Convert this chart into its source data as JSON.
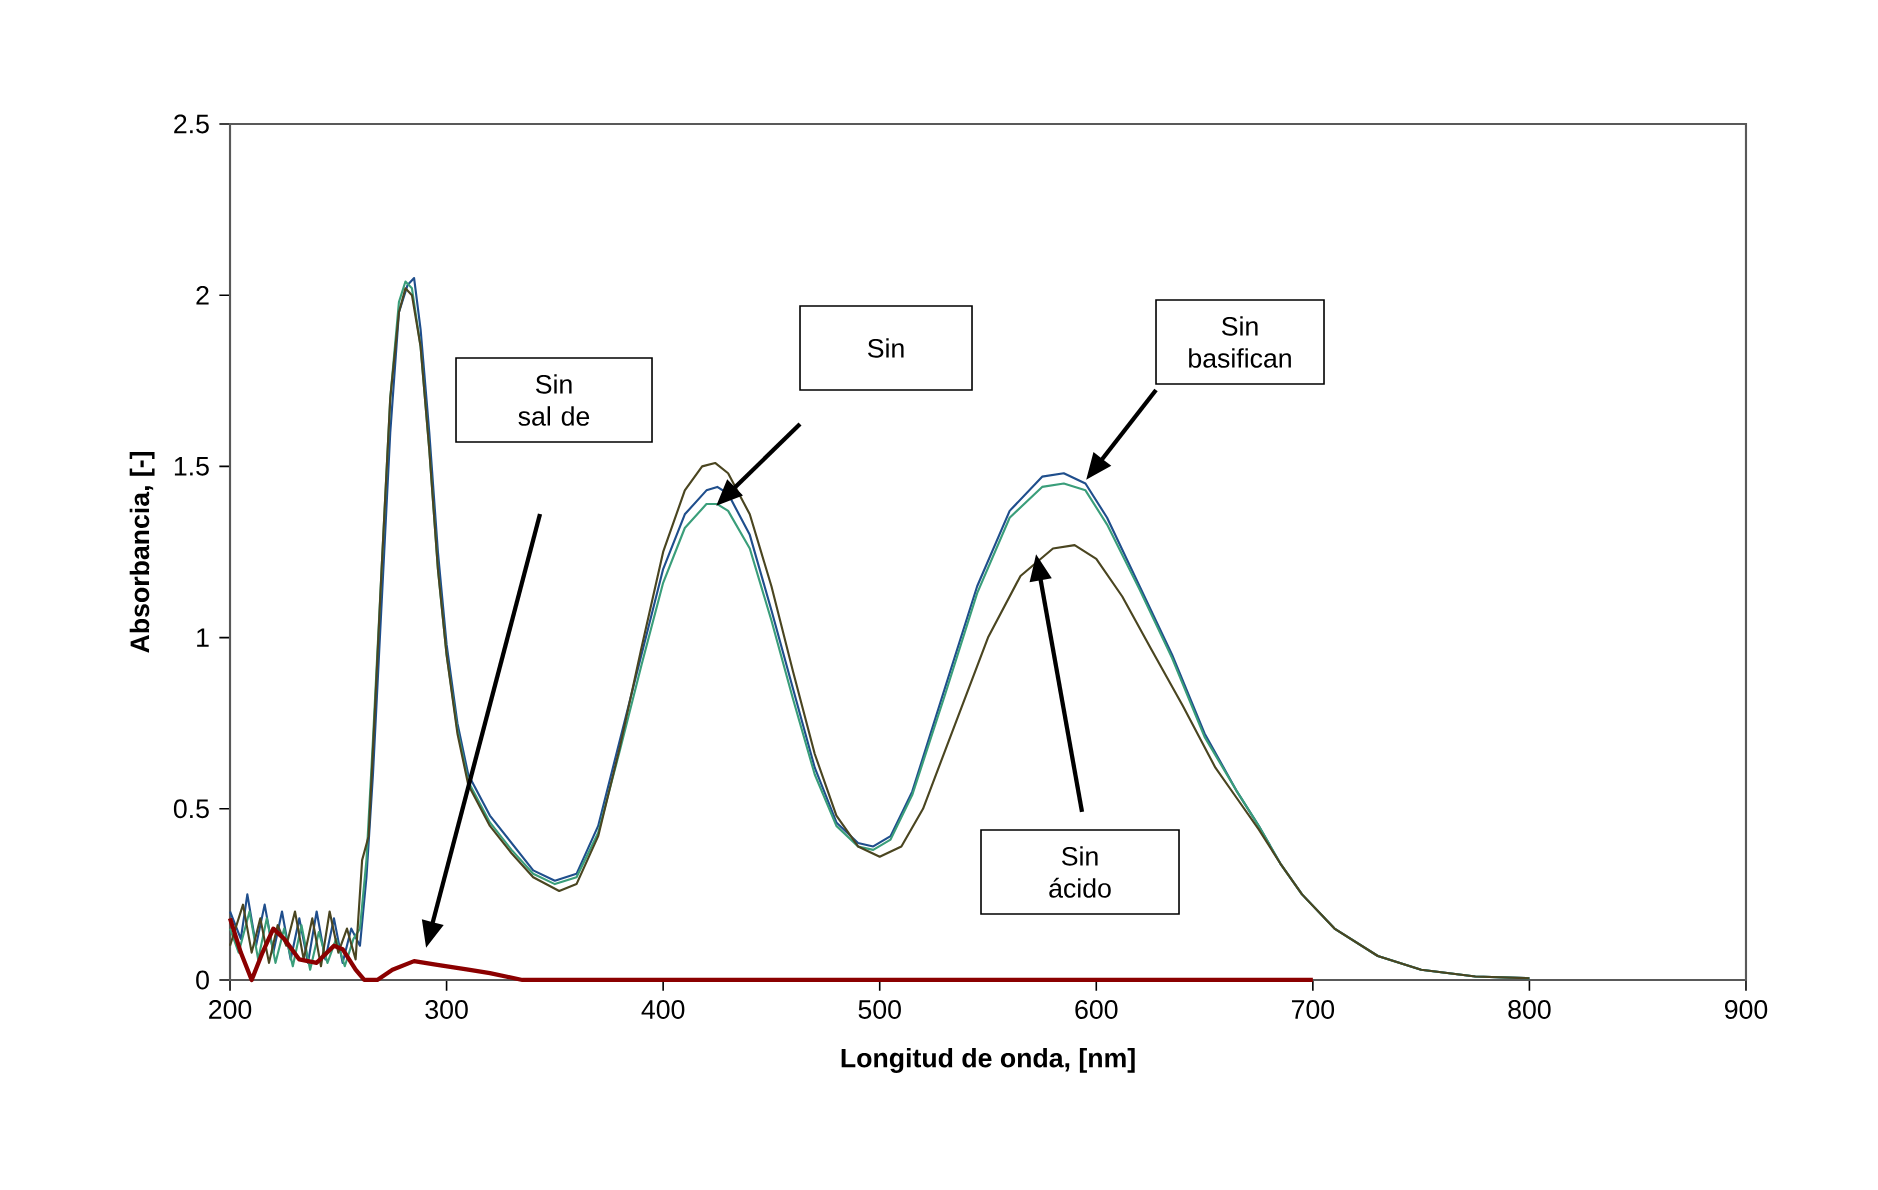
{
  "chart_data": {
    "type": "line",
    "xlabel": "Longitud de onda, [nm]",
    "ylabel": "Absorbancia, [-]",
    "xlim": [
      200,
      900
    ],
    "ylim": [
      0,
      2.5
    ],
    "xticks": [
      200,
      300,
      400,
      500,
      600,
      700,
      800,
      900
    ],
    "yticks": [
      0,
      0.5,
      1,
      1.5,
      2,
      2.5
    ],
    "grid": false,
    "series": [
      {
        "color": "#1f4e8c",
        "x": [
          200,
          205,
          208,
          212,
          216,
          220,
          224,
          228,
          232,
          236,
          240,
          244,
          248,
          252,
          256,
          260,
          263,
          266,
          270,
          274,
          278,
          282,
          285,
          288,
          292,
          296,
          300,
          305,
          310,
          320,
          330,
          340,
          350,
          360,
          370,
          380,
          390,
          400,
          410,
          420,
          425,
          430,
          440,
          450,
          460,
          470,
          480,
          490,
          497,
          505,
          515,
          530,
          545,
          560,
          575,
          585,
          595,
          605,
          620,
          635,
          650,
          665,
          675,
          685,
          695,
          710,
          730,
          750,
          775,
          800
        ],
        "values": [
          0.2,
          0.12,
          0.25,
          0.1,
          0.22,
          0.08,
          0.2,
          0.06,
          0.18,
          0.05,
          0.2,
          0.06,
          0.18,
          0.05,
          0.15,
          0.1,
          0.3,
          0.6,
          1.1,
          1.6,
          1.95,
          2.03,
          2.05,
          1.9,
          1.6,
          1.25,
          0.98,
          0.75,
          0.6,
          0.48,
          0.4,
          0.32,
          0.29,
          0.31,
          0.45,
          0.7,
          0.95,
          1.2,
          1.36,
          1.43,
          1.44,
          1.42,
          1.3,
          1.08,
          0.85,
          0.62,
          0.46,
          0.4,
          0.39,
          0.42,
          0.55,
          0.85,
          1.15,
          1.37,
          1.47,
          1.48,
          1.45,
          1.35,
          1.15,
          0.95,
          0.72,
          0.55,
          0.45,
          0.34,
          0.25,
          0.15,
          0.07,
          0.03,
          0.01,
          0.005
        ]
      },
      {
        "color": "#3a9e7a",
        "x": [
          200,
          204,
          209,
          213,
          217,
          221,
          225,
          229,
          233,
          237,
          241,
          245,
          249,
          253,
          257,
          260,
          263,
          266,
          270,
          274,
          278,
          281,
          284,
          288,
          292,
          296,
          300,
          305,
          310,
          320,
          330,
          340,
          350,
          360,
          370,
          380,
          390,
          400,
          410,
          420,
          425,
          430,
          440,
          450,
          460,
          470,
          480,
          490,
          497,
          505,
          515,
          530,
          545,
          560,
          575,
          585,
          595,
          605,
          620,
          635,
          650,
          665,
          675,
          685,
          695,
          710,
          730,
          750,
          775,
          800
        ],
        "values": [
          0.15,
          0.08,
          0.2,
          0.06,
          0.18,
          0.05,
          0.15,
          0.04,
          0.16,
          0.03,
          0.14,
          0.05,
          0.12,
          0.04,
          0.12,
          0.15,
          0.35,
          0.7,
          1.2,
          1.7,
          1.98,
          2.04,
          2.02,
          1.85,
          1.55,
          1.2,
          0.95,
          0.73,
          0.58,
          0.46,
          0.38,
          0.31,
          0.28,
          0.3,
          0.43,
          0.67,
          0.92,
          1.16,
          1.32,
          1.39,
          1.39,
          1.37,
          1.26,
          1.05,
          0.82,
          0.6,
          0.45,
          0.39,
          0.38,
          0.41,
          0.54,
          0.83,
          1.13,
          1.35,
          1.44,
          1.45,
          1.43,
          1.33,
          1.14,
          0.94,
          0.71,
          0.55,
          0.45,
          0.34,
          0.25,
          0.15,
          0.07,
          0.03,
          0.01,
          0.005
        ]
      },
      {
        "color": "#4a4520",
        "x": [
          200,
          206,
          210,
          214,
          218,
          222,
          226,
          230,
          234,
          238,
          242,
          246,
          250,
          254,
          258,
          261,
          264,
          267,
          270,
          274,
          278,
          281,
          284,
          288,
          292,
          296,
          300,
          305,
          310,
          320,
          330,
          340,
          352,
          360,
          370,
          380,
          390,
          400,
          410,
          418,
          424,
          430,
          440,
          450,
          460,
          470,
          480,
          490,
          500,
          510,
          520,
          535,
          550,
          565,
          580,
          590,
          600,
          612,
          625,
          640,
          655,
          665,
          675,
          685,
          695,
          710,
          730,
          750,
          775,
          800
        ],
        "values": [
          0.1,
          0.22,
          0.08,
          0.18,
          0.05,
          0.16,
          0.1,
          0.2,
          0.06,
          0.18,
          0.04,
          0.2,
          0.08,
          0.15,
          0.06,
          0.35,
          0.42,
          0.8,
          1.2,
          1.7,
          1.95,
          2.02,
          2.0,
          1.85,
          1.55,
          1.2,
          0.95,
          0.72,
          0.57,
          0.45,
          0.37,
          0.3,
          0.26,
          0.28,
          0.42,
          0.68,
          0.97,
          1.25,
          1.43,
          1.5,
          1.51,
          1.48,
          1.36,
          1.15,
          0.9,
          0.66,
          0.48,
          0.39,
          0.36,
          0.39,
          0.5,
          0.75,
          1.0,
          1.18,
          1.26,
          1.27,
          1.23,
          1.12,
          0.97,
          0.8,
          0.62,
          0.53,
          0.44,
          0.34,
          0.25,
          0.15,
          0.07,
          0.03,
          0.01,
          0.005
        ]
      },
      {
        "color": "#8b0000",
        "x": [
          200,
          205,
          210,
          215,
          220,
          225,
          232,
          240,
          248,
          252,
          258,
          262,
          268,
          275,
          285,
          295,
          310,
          320,
          335,
          400,
          500,
          600,
          700
        ],
        "values": [
          0.18,
          0.08,
          0.0,
          0.08,
          0.15,
          0.12,
          0.06,
          0.05,
          0.1,
          0.09,
          0.03,
          0.0,
          0.0,
          0.03,
          0.055,
          0.045,
          0.03,
          0.02,
          0.0,
          0.0,
          0.0,
          0.0,
          0.0
        ]
      }
    ],
    "annotations": [
      "Sin sal de",
      "Sin",
      "Sin basifican",
      "Sin ácido"
    ]
  }
}
